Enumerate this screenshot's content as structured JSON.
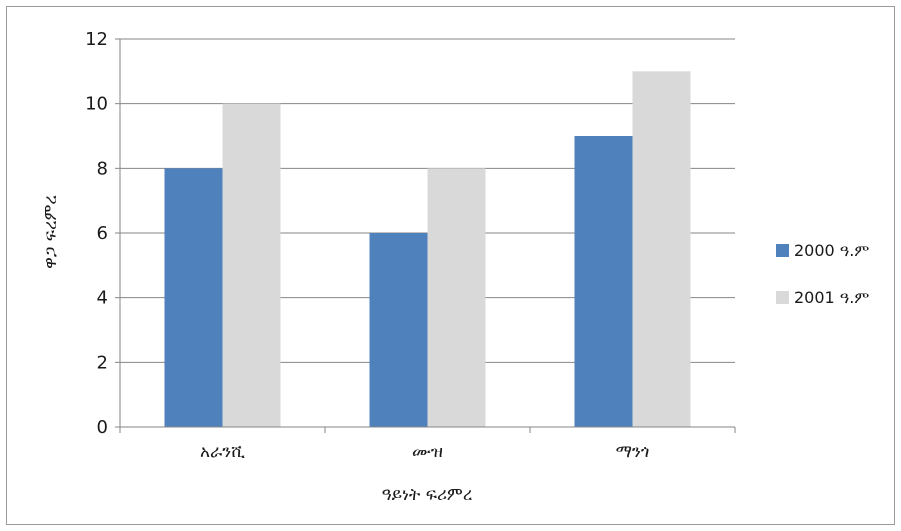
{
  "colors": {
    "series_2000": "#4F81BD",
    "series_2001": "#D9D9D9",
    "gridline": "#868686",
    "axis": "#868686",
    "frame_border": "#9a9a9a",
    "background": "#ffffff"
  },
  "chart_data": {
    "type": "bar",
    "title": "",
    "xlabel": "ዓይነት ፍሪምረ",
    "ylabel": "ዋጋ ፍረምረ",
    "categories": [
      "አራንሺ",
      "ሙዝ",
      "ማንጎ"
    ],
    "series": [
      {
        "name": "2000 ዓ.ም",
        "values": [
          8,
          6,
          9
        ],
        "color": "#4F81BD"
      },
      {
        "name": "2001 ዓ.ም",
        "values": [
          10,
          8,
          11
        ],
        "color": "#D9D9D9"
      }
    ],
    "ylim": [
      0,
      12
    ],
    "yticks": [
      "0",
      "2",
      "4",
      "6",
      "8",
      "10",
      "12"
    ],
    "ytick_values": [
      0,
      2,
      4,
      6,
      8,
      10,
      12
    ],
    "grid": true,
    "legend_position": "right"
  }
}
